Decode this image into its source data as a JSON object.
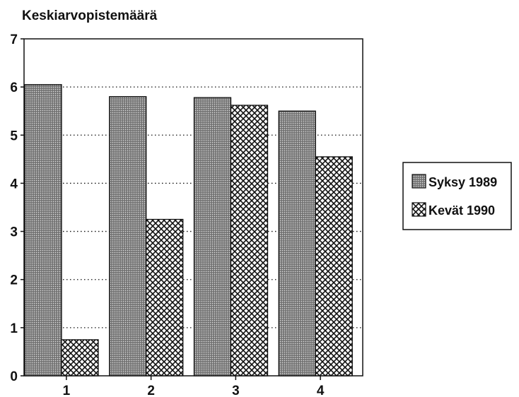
{
  "chart_data": {
    "type": "bar",
    "title": "",
    "xlabel": "",
    "ylabel": "Keskiarvopistemäärä",
    "categories": [
      "1",
      "2",
      "3",
      "4"
    ],
    "series": [
      {
        "name": "Syksy 1989",
        "values": [
          6.05,
          5.8,
          5.78,
          5.5
        ]
      },
      {
        "name": "Kevät 1990",
        "values": [
          0.75,
          3.25,
          5.62,
          4.55
        ]
      }
    ],
    "ylim": [
      0,
      7
    ],
    "yticks": [
      "0",
      "1",
      "2",
      "3",
      "4",
      "5",
      "6",
      "7"
    ],
    "grid": "horizontal dotted",
    "legend_position": "right"
  }
}
